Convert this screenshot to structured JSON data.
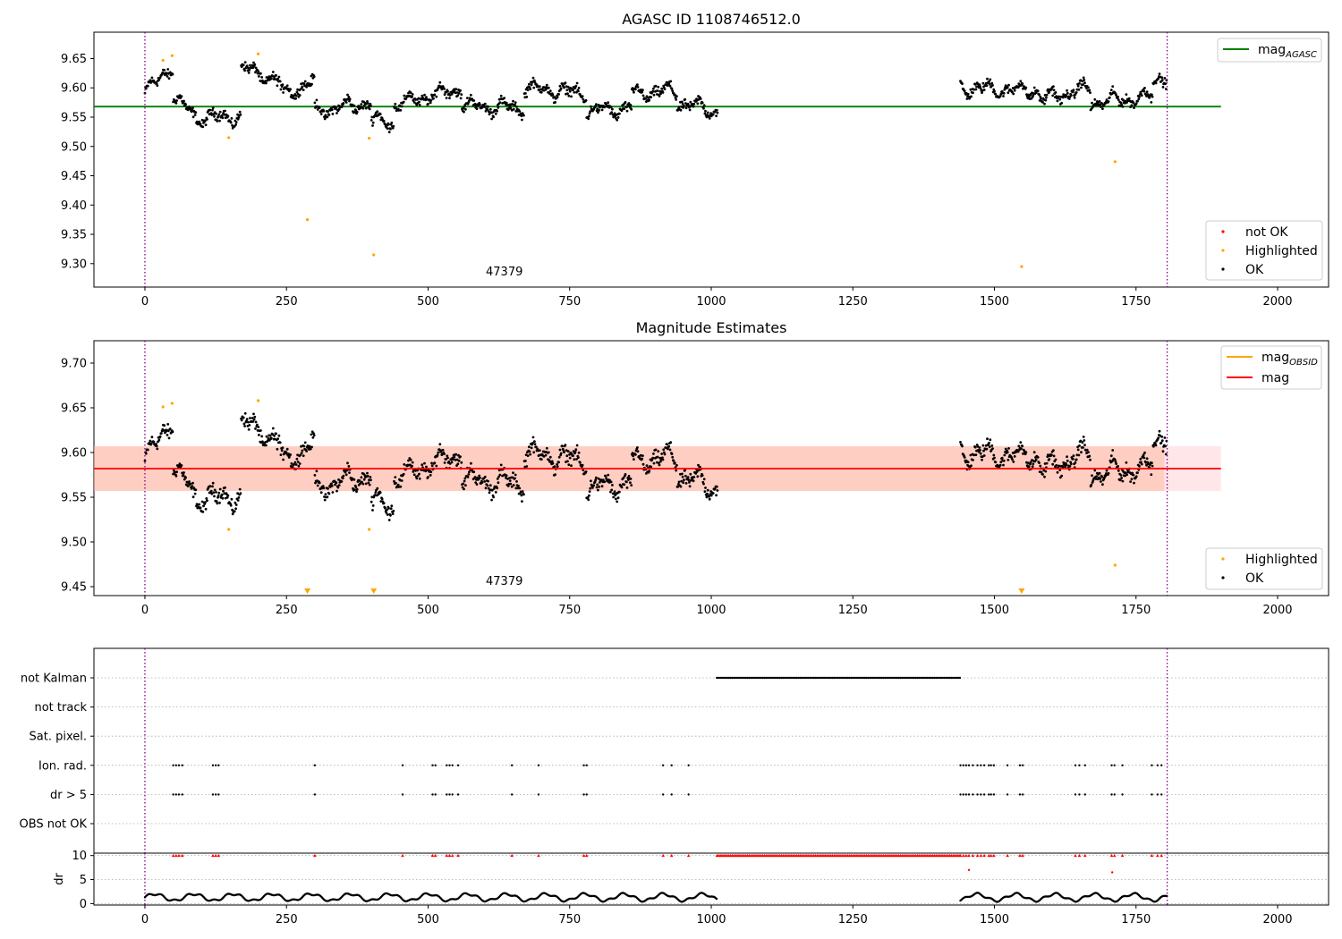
{
  "chart_data": [
    {
      "type": "scatter",
      "title": "AGASC ID 1108746512.0",
      "xlim": [
        -90,
        2090
      ],
      "ylim": [
        9.26,
        9.695
      ],
      "xticks": [
        "0",
        "250",
        "500",
        "750",
        "1000",
        "1250",
        "1500",
        "1750",
        "2000"
      ],
      "xtick_values": [
        0,
        250,
        500,
        750,
        1000,
        1250,
        1500,
        1750,
        2000
      ],
      "yticks": [
        "9.30",
        "9.35",
        "9.40",
        "9.45",
        "9.50",
        "9.55",
        "9.60",
        "9.65"
      ],
      "ytick_values": [
        9.3,
        9.35,
        9.4,
        9.45,
        9.5,
        9.55,
        9.6,
        9.65
      ],
      "vlines": [
        0,
        1805
      ],
      "hline": {
        "value": 9.568,
        "xmin": -90,
        "xmax": 1900,
        "color": "#008000"
      },
      "obsid_label": {
        "text": "47379",
        "x": 900,
        "y": 9.28
      },
      "legend_top": [
        {
          "label": "mag",
          "sub": "AGASC",
          "color": "#008000"
        }
      ],
      "legend_bottom": [
        {
          "label": "not OK",
          "color": "#ff0000"
        },
        {
          "label": "Highlighted",
          "color": "#ffa500"
        },
        {
          "label": "OK",
          "color": "#000000"
        }
      ],
      "highlighted_points": [
        [
          32,
          9.647
        ],
        [
          48,
          9.655
        ],
        [
          148,
          9.515
        ],
        [
          200,
          9.658
        ],
        [
          287,
          9.375
        ],
        [
          396,
          9.514
        ],
        [
          404,
          9.315
        ],
        [
          1548,
          9.295
        ],
        [
          1713,
          9.474
        ]
      ],
      "ok_segments": [
        {
          "x0": 0,
          "x1": 50,
          "base": [
            9.59,
            9.64
          ]
        },
        {
          "x0": 50,
          "x1": 95,
          "base": [
            9.585,
            9.545
          ]
        },
        {
          "x0": 95,
          "x1": 170,
          "base": [
            9.55,
            9.55
          ]
        },
        {
          "x0": 170,
          "x1": 240,
          "base": [
            9.635,
            9.61
          ]
        },
        {
          "x0": 240,
          "x1": 300,
          "base": [
            9.59,
            9.61
          ]
        },
        {
          "x0": 300,
          "x1": 400,
          "base": [
            9.56,
            9.575
          ]
        },
        {
          "x0": 400,
          "x1": 440,
          "base": [
            9.545,
            9.54
          ]
        },
        {
          "x0": 440,
          "x1": 560,
          "base": [
            9.57,
            9.6
          ]
        },
        {
          "x0": 560,
          "x1": 670,
          "base": [
            9.57,
            9.565
          ]
        },
        {
          "x0": 670,
          "x1": 780,
          "base": [
            9.6,
            9.59
          ]
        },
        {
          "x0": 780,
          "x1": 860,
          "base": [
            9.56,
            9.565
          ]
        },
        {
          "x0": 860,
          "x1": 940,
          "base": [
            9.59,
            9.595
          ]
        },
        {
          "x0": 940,
          "x1": 1012,
          "base": [
            9.575,
            9.56
          ]
        },
        {
          "x0": 1440,
          "x1": 1580,
          "base": [
            9.6,
            9.595
          ]
        },
        {
          "x0": 1580,
          "x1": 1670,
          "base": [
            9.58,
            9.6
          ]
        },
        {
          "x0": 1670,
          "x1": 1780,
          "base": [
            9.575,
            9.585
          ]
        },
        {
          "x0": 1780,
          "x1": 1805,
          "base": [
            9.615,
            9.62
          ]
        }
      ]
    },
    {
      "type": "scatter",
      "title": "Magnitude Estimates",
      "xlim": [
        -90,
        2090
      ],
      "ylim": [
        9.44,
        9.725
      ],
      "xticks": [
        "0",
        "250",
        "500",
        "750",
        "1000",
        "1250",
        "1500",
        "1750",
        "2000"
      ],
      "xtick_values": [
        0,
        250,
        500,
        750,
        1000,
        1250,
        1500,
        1750,
        2000
      ],
      "yticks": [
        "9.45",
        "9.50",
        "9.55",
        "9.60",
        "9.65",
        "9.70"
      ],
      "ytick_values": [
        9.45,
        9.5,
        9.55,
        9.6,
        9.65,
        9.7
      ],
      "vlines": [
        0,
        1805
      ],
      "mag_line": {
        "value": 9.582,
        "xmin": -90,
        "xmax": 1900,
        "color": "#ff0000"
      },
      "mag_band": {
        "low": 9.557,
        "high": 9.607,
        "xmin": -90,
        "xmax": 1900,
        "color": "#ffb6c1"
      },
      "obsid_band": {
        "low": 9.557,
        "high": 9.607,
        "xmin": -90,
        "xmax": 1800,
        "color": "#ffa07a"
      },
      "obsid_label": {
        "text": "47379",
        "x": 900,
        "y": 9.452
      },
      "legend_top": [
        {
          "label": "mag",
          "sub": "OBSID",
          "color": "#ffa500"
        },
        {
          "label": "mag",
          "sub": "",
          "color": "#ff0000"
        }
      ],
      "legend_bottom": [
        {
          "label": "Highlighted",
          "color": "#ffa500"
        },
        {
          "label": "OK",
          "color": "#000000"
        }
      ],
      "highlighted_points": [
        [
          32,
          9.651
        ],
        [
          48,
          9.655
        ],
        [
          148,
          9.514
        ],
        [
          200,
          9.658
        ],
        [
          396,
          9.514
        ],
        [
          1713,
          9.474
        ]
      ],
      "lower_markers": [
        287,
        404,
        1548
      ]
    },
    {
      "type": "scatter",
      "title": "",
      "xlim": [
        -90,
        2090
      ],
      "xticks": [
        "0",
        "250",
        "500",
        "750",
        "1000",
        "1250",
        "1500",
        "1750",
        "2000"
      ],
      "xtick_values": [
        0,
        250,
        500,
        750,
        1000,
        1250,
        1500,
        1750,
        2000
      ],
      "vlines": [
        0,
        1805
      ],
      "flag_rows": [
        "not Kalman",
        "not track",
        "Sat. pixel.",
        "Ion. rad.",
        "dr > 5",
        "OBS not OK"
      ],
      "not_kalman_range": [
        1010,
        1440
      ],
      "flag_times": [
        50,
        55,
        60,
        66,
        120,
        125,
        130,
        300,
        455,
        508,
        513,
        533,
        538,
        543,
        553,
        648,
        695,
        775,
        780,
        915,
        930,
        960,
        1440,
        1445,
        1450,
        1455,
        1462,
        1470,
        1476,
        1482,
        1490,
        1494,
        1499,
        1523,
        1545,
        1550,
        1643,
        1650,
        1660,
        1707,
        1712,
        1726,
        1778,
        1788,
        1795
      ],
      "dr": {
        "ylabel": "dr",
        "yticks": [
          "0",
          "5",
          "10"
        ],
        "ytick_values": [
          0,
          5,
          10
        ],
        "ylim": [
          -0.3,
          10.5
        ],
        "clipped_value": 10,
        "extra_points": [
          [
            1455,
            7
          ],
          [
            1708,
            6.5
          ]
        ]
      }
    }
  ]
}
